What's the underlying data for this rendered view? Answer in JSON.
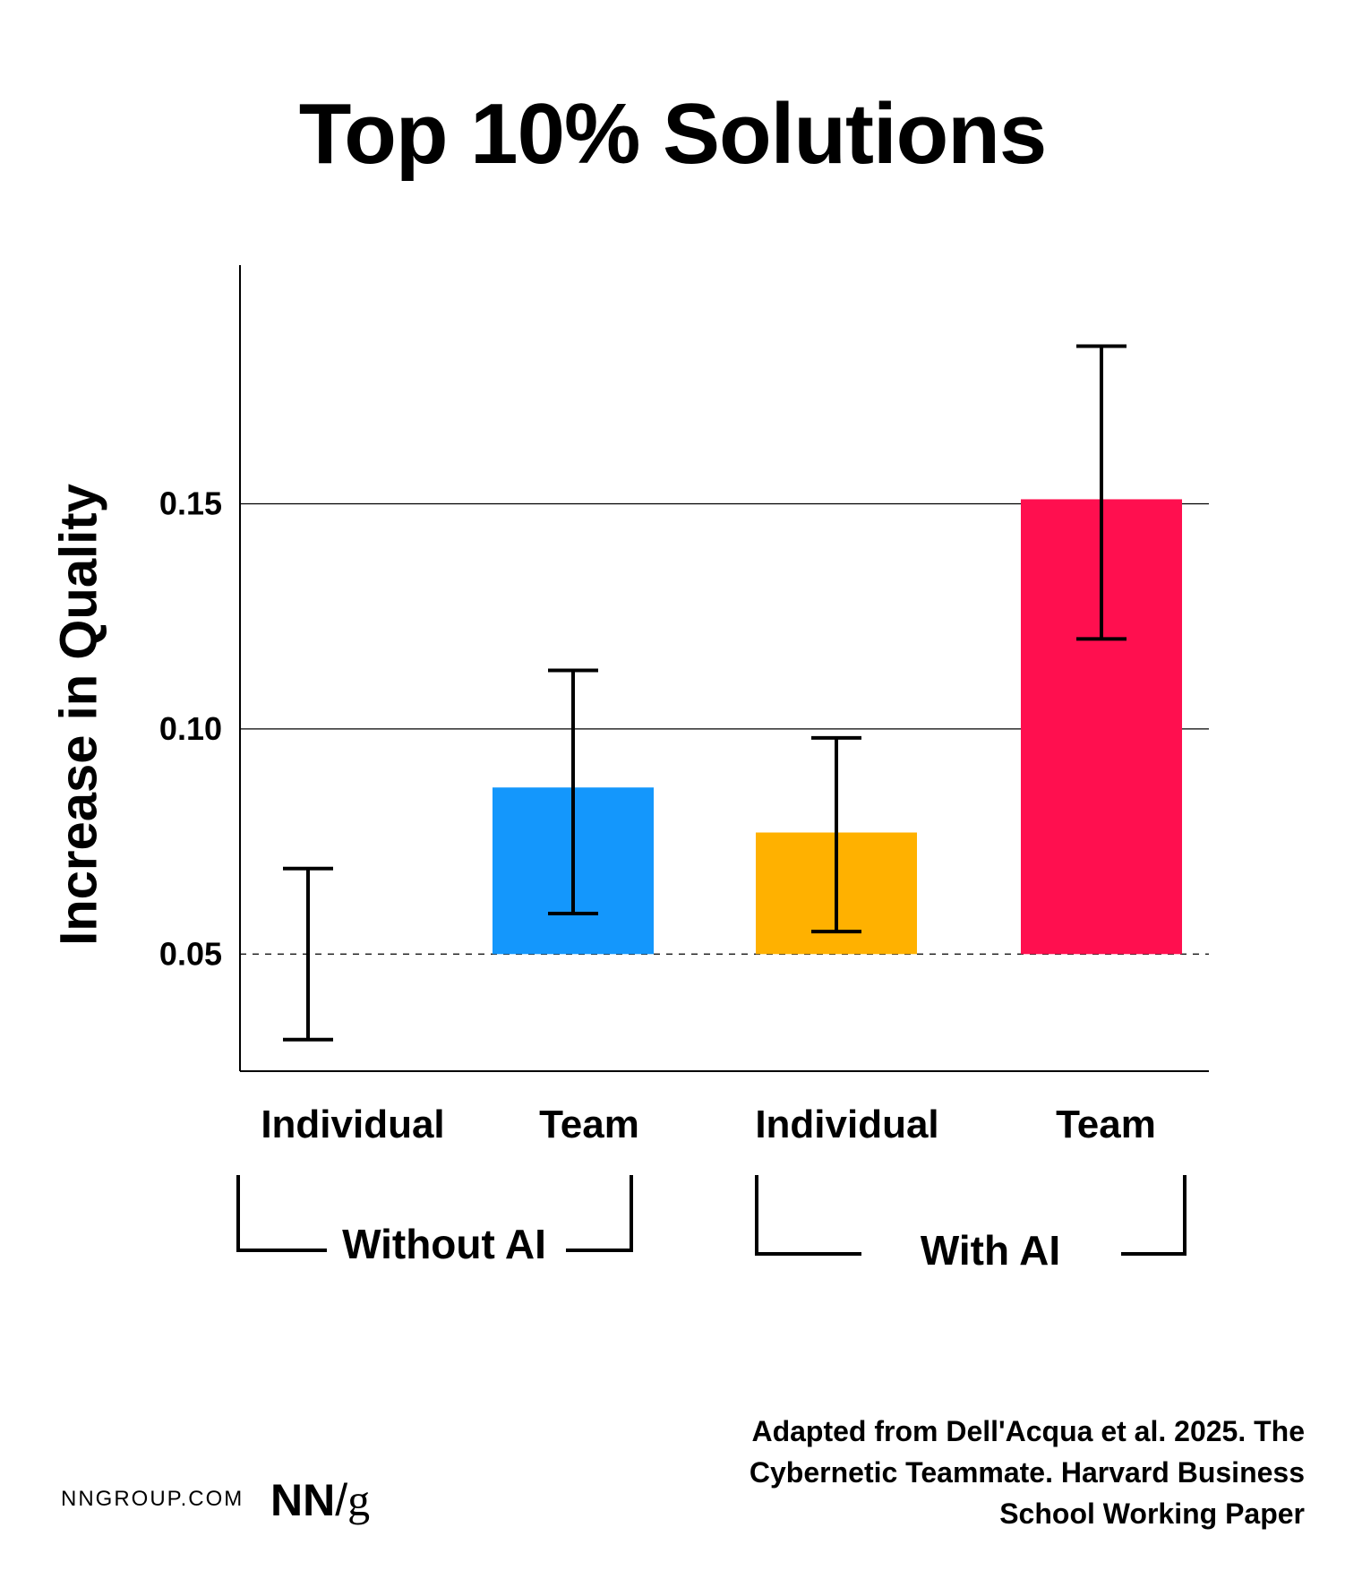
{
  "chart_data": {
    "type": "bar",
    "title": "Top 10% Solutions",
    "ylabel": "Increase in Quality",
    "xlabel": "",
    "baseline": 0.05,
    "ylim": [
      0.024,
      0.203
    ],
    "yticks": [
      0.05,
      0.1,
      0.15
    ],
    "ytick_labels": [
      "0.05",
      "0.10",
      "0.15"
    ],
    "gridlines": [
      0.1,
      0.15
    ],
    "baseline_style": "dashed",
    "categories": [
      "Individual",
      "Team",
      "Individual",
      "Team"
    ],
    "values": [
      0.05,
      0.087,
      0.077,
      0.151
    ],
    "error_low": [
      0.031,
      0.059,
      0.055,
      0.12
    ],
    "error_high": [
      0.069,
      0.113,
      0.098,
      0.185
    ],
    "colors": [
      "#ffffff",
      "#1497fc",
      "#ffb100",
      "#ff0f4f"
    ],
    "groups": [
      {
        "label": "Without AI",
        "categories": [
          0,
          1
        ]
      },
      {
        "label": "With AI",
        "categories": [
          2,
          3
        ]
      }
    ]
  },
  "footer": {
    "site": "NNGROUP.COM",
    "logo_nn": "NN",
    "logo_slash": "/",
    "logo_g": "g",
    "source": "Adapted from Dell'Acqua et al.  2025. The Cybernetic Teammate. Harvard Business School Working Paper"
  }
}
